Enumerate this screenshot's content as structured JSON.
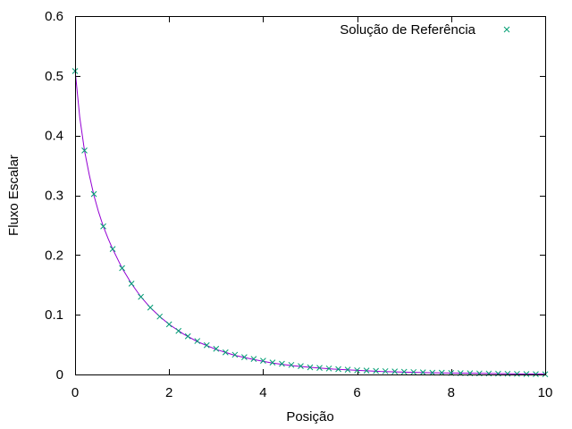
{
  "chart_data": {
    "type": "scatter",
    "xlabel": "Posição",
    "ylabel": "Fluxo Escalar",
    "xlim": [
      0,
      10
    ],
    "ylim": [
      0,
      0.6
    ],
    "x_ticks": [
      0,
      2,
      4,
      6,
      8,
      10
    ],
    "y_ticks": [
      0,
      0.1,
      0.2,
      0.3,
      0.4,
      0.5,
      0.6
    ],
    "x_tick_labels": [
      "0",
      "2",
      "4",
      "6",
      "8",
      "10"
    ],
    "y_tick_labels": [
      "0",
      "0.1",
      "0.2",
      "0.3",
      "0.4",
      "0.5",
      "0.6"
    ],
    "grid": false,
    "legend_position": "top-right",
    "legend": {
      "label": "Solução de Referência",
      "color": "#009e73"
    },
    "line_series": {
      "style": "line",
      "color": "#9400d3",
      "x": [
        0,
        0.1,
        0.2,
        0.3,
        0.4,
        0.5,
        0.6,
        0.7,
        0.8,
        0.9,
        1.0,
        1.2,
        1.4,
        1.6,
        1.8,
        2.0,
        2.3,
        2.6,
        3.0,
        3.4,
        3.8,
        4.2,
        4.6,
        5.0,
        5.5,
        6.0,
        6.5,
        7.0,
        7.5,
        8.0,
        8.5,
        9.0,
        9.5,
        10.0
      ],
      "y": [
        0.51,
        0.43,
        0.375,
        0.335,
        0.3,
        0.272,
        0.248,
        0.228,
        0.21,
        0.194,
        0.178,
        0.152,
        0.13,
        0.112,
        0.097,
        0.084,
        0.068,
        0.055,
        0.042,
        0.032,
        0.025,
        0.019,
        0.015,
        0.012,
        0.009,
        0.007,
        0.005,
        0.004,
        0.003,
        0.0025,
        0.002,
        0.0015,
        0.001,
        0.001
      ]
    },
    "series": [
      {
        "name": "Solução de Referência",
        "style": "x-markers",
        "color": "#009e73",
        "x": [
          0,
          0.2,
          0.4,
          0.6,
          0.8,
          1.0,
          1.2,
          1.4,
          1.6,
          1.8,
          2.0,
          2.2,
          2.4,
          2.6,
          2.8,
          3.0,
          3.2,
          3.4,
          3.6,
          3.8,
          4.0,
          4.2,
          4.4,
          4.6,
          4.8,
          5.0,
          5.2,
          5.4,
          5.6,
          5.8,
          6.0,
          6.2,
          6.4,
          6.6,
          6.8,
          7.0,
          7.2,
          7.4,
          7.6,
          7.8,
          8.0,
          8.2,
          8.4,
          8.6,
          8.8,
          9.0,
          9.2,
          9.4,
          9.6,
          9.8,
          10.0
        ],
        "y": [
          0.508,
          0.375,
          0.302,
          0.248,
          0.21,
          0.178,
          0.152,
          0.13,
          0.112,
          0.097,
          0.084,
          0.073,
          0.064,
          0.056,
          0.049,
          0.043,
          0.037,
          0.033,
          0.029,
          0.026,
          0.023,
          0.02,
          0.018,
          0.016,
          0.014,
          0.012,
          0.011,
          0.01,
          0.009,
          0.008,
          0.007,
          0.0065,
          0.006,
          0.0055,
          0.005,
          0.0045,
          0.004,
          0.0035,
          0.003,
          0.003,
          0.0025,
          0.0022,
          0.002,
          0.0018,
          0.0016,
          0.0014,
          0.0012,
          0.001,
          0.0008,
          0.0006,
          0.0004
        ]
      }
    ]
  }
}
